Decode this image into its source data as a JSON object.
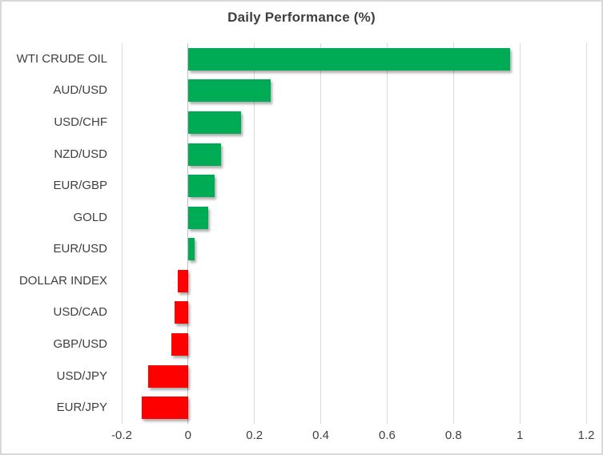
{
  "chart_data": {
    "type": "bar",
    "orientation": "horizontal",
    "title": "Daily Performance (%)",
    "categories": [
      "WTI CRUDE OIL",
      "AUD/USD",
      "USD/CHF",
      "NZD/USD",
      "EUR/GBP",
      "GOLD",
      "EUR/USD",
      "DOLLAR INDEX",
      "USD/CAD",
      "GBP/USD",
      "USD/JPY",
      "EUR/JPY"
    ],
    "values": [
      0.97,
      0.25,
      0.16,
      0.1,
      0.08,
      0.06,
      0.02,
      -0.03,
      -0.04,
      -0.05,
      -0.12,
      -0.14
    ],
    "xlim": [
      -0.2,
      1.2
    ],
    "x_ticks": [
      -0.2,
      0,
      0.2,
      0.4,
      0.6,
      0.8,
      1,
      1.2
    ],
    "x_tick_labels": [
      "-0.2",
      "0",
      "0.2",
      "0.4",
      "0.6",
      "0.8",
      "1",
      "1.2"
    ],
    "xlabel": "",
    "ylabel": "",
    "grid": "vertical-only",
    "legend": "none",
    "colors": {
      "positive_bar": "#00ab55",
      "negative_bar": "#ff0000",
      "gridline": "#d9d9d9",
      "zero_axis_line": "#bfbfbf",
      "text": "#3f3f3f",
      "frame_border": "#d9d9d9",
      "background": "#ffffff"
    }
  }
}
